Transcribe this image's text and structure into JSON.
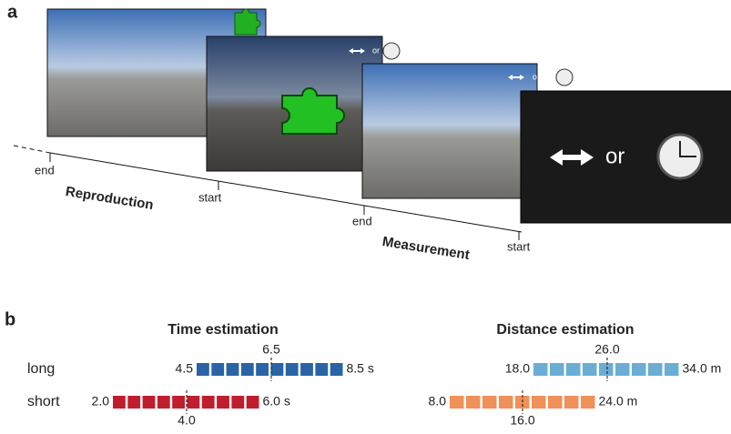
{
  "panel_a": {
    "label": "a",
    "or_labels": [
      "or",
      "or",
      "or"
    ],
    "timeline": {
      "end_1": "end",
      "reproduction": "Reproduction",
      "start_1": "start",
      "end_2": "end",
      "measurement": "Measurement",
      "start_2": "start"
    }
  },
  "panel_b": {
    "label": "b",
    "rows": [
      "long",
      "short"
    ],
    "time": {
      "title": "Time estimation",
      "long": {
        "min": "4.5",
        "mid": "6.5",
        "max": "8.5 s"
      },
      "short": {
        "min": "2.0",
        "mid": "4.0",
        "max": "6.0 s"
      }
    },
    "distance": {
      "title": "Distance estimation",
      "long": {
        "min": "18.0",
        "mid": "26.0",
        "max": "34.0 m"
      },
      "short": {
        "min": "8.0",
        "mid": "16.0",
        "max": "24.0 m"
      }
    }
  }
}
